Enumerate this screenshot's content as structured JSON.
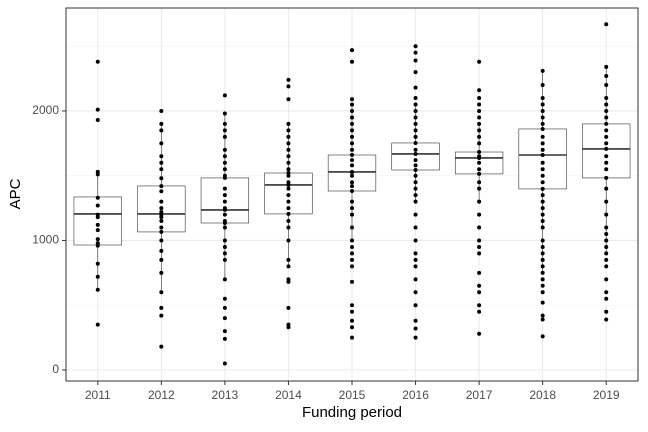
{
  "chart_data": {
    "type": "box",
    "xlabel": "Funding period",
    "ylabel": "APC",
    "categories": [
      "2011",
      "2012",
      "2013",
      "2014",
      "2015",
      "2016",
      "2017",
      "2018",
      "2019"
    ],
    "ylim": [
      -85,
      2795
    ],
    "yticks": [
      0,
      1000,
      2000
    ],
    "yminor": [
      500,
      1500,
      2500
    ],
    "grid": true,
    "color": "#000000",
    "boxes": [
      {
        "whisker_low": 620,
        "q1": 965,
        "median": 1205,
        "q3": 1336,
        "whisker_high": 1530,
        "points": [
          2380,
          2010,
          1930,
          1530,
          1510,
          1330,
          1270,
          1200,
          1180,
          1120,
          1080,
          1010,
          980,
          960,
          820,
          720,
          620,
          350
        ]
      },
      {
        "whisker_low": 600,
        "q1": 1066,
        "median": 1205,
        "q3": 1421,
        "whisker_high": 1900,
        "points": [
          2000,
          1900,
          1850,
          1750,
          1650,
          1600,
          1550,
          1480,
          1420,
          1380,
          1300,
          1250,
          1220,
          1200,
          1180,
          1150,
          1100,
          1066,
          1000,
          920,
          850,
          750,
          600,
          480,
          420,
          180
        ]
      },
      {
        "whisker_low": 700,
        "q1": 1135,
        "median": 1236,
        "q3": 1483,
        "whisker_high": 1980,
        "points": [
          2120,
          1980,
          1900,
          1850,
          1800,
          1700,
          1650,
          1600,
          1550,
          1500,
          1483,
          1400,
          1350,
          1300,
          1250,
          1236,
          1200,
          1150,
          1135,
          1100,
          1000,
          950,
          900,
          850,
          700,
          550,
          480,
          400,
          300,
          240,
          50
        ]
      },
      {
        "whisker_low": 800,
        "q1": 1205,
        "median": 1429,
        "q3": 1521,
        "whisker_high": 1900,
        "points": [
          2240,
          2190,
          2090,
          1900,
          1850,
          1800,
          1750,
          1700,
          1650,
          1600,
          1550,
          1521,
          1500,
          1450,
          1429,
          1400,
          1350,
          1300,
          1250,
          1205,
          1150,
          1100,
          1000,
          850,
          800,
          700,
          680,
          480,
          350,
          330
        ]
      },
      {
        "whisker_low": 1000,
        "q1": 1382,
        "median": 1529,
        "q3": 1660,
        "whisker_high": 2050,
        "points": [
          2470,
          2380,
          2090,
          2050,
          2000,
          1950,
          1900,
          1850,
          1800,
          1750,
          1700,
          1660,
          1620,
          1580,
          1529,
          1500,
          1450,
          1420,
          1382,
          1300,
          1250,
          1200,
          1100,
          1000,
          950,
          900,
          850,
          800,
          680,
          500,
          450,
          380,
          330,
          250
        ]
      },
      {
        "whisker_low": 1300,
        "q1": 1544,
        "median": 1668,
        "q3": 1753,
        "whisker_high": 2050,
        "points": [
          2500,
          2450,
          2390,
          2300,
          2180,
          2100,
          2050,
          2000,
          1950,
          1900,
          1850,
          1800,
          1753,
          1700,
          1668,
          1620,
          1580,
          1544,
          1500,
          1450,
          1400,
          1350,
          1300,
          1200,
          1100,
          1000,
          900,
          850,
          800,
          700,
          600,
          500,
          380,
          320,
          250
        ]
      },
      {
        "whisker_low": 1300,
        "q1": 1514,
        "median": 1637,
        "q3": 1683,
        "whisker_high": 1900,
        "points": [
          2380,
          2160,
          2100,
          2050,
          2000,
          1950,
          1900,
          1850,
          1800,
          1750,
          1683,
          1650,
          1637,
          1600,
          1550,
          1514,
          1450,
          1400,
          1300,
          1200,
          1100,
          1000,
          950,
          900,
          750,
          650,
          600,
          500,
          450,
          280
        ]
      },
      {
        "whisker_low": 750,
        "q1": 1398,
        "median": 1660,
        "q3": 1861,
        "whisker_high": 2310,
        "points": [
          2310,
          2200,
          2100,
          2050,
          2000,
          1950,
          1900,
          1861,
          1800,
          1750,
          1700,
          1660,
          1600,
          1550,
          1500,
          1450,
          1398,
          1350,
          1300,
          1250,
          1200,
          1150,
          1100,
          1000,
          950,
          900,
          850,
          800,
          750,
          700,
          650,
          600,
          520,
          420,
          390,
          260
        ]
      },
      {
        "whisker_low": 900,
        "q1": 1483,
        "median": 1707,
        "q3": 1900,
        "whisker_high": 2340,
        "points": [
          2670,
          2340,
          2270,
          2200,
          2100,
          2050,
          2000,
          1950,
          1900,
          1850,
          1800,
          1750,
          1707,
          1650,
          1600,
          1550,
          1483,
          1400,
          1300,
          1200,
          1100,
          1050,
          1000,
          950,
          900,
          850,
          800,
          700,
          600,
          550,
          450,
          390
        ]
      }
    ]
  }
}
